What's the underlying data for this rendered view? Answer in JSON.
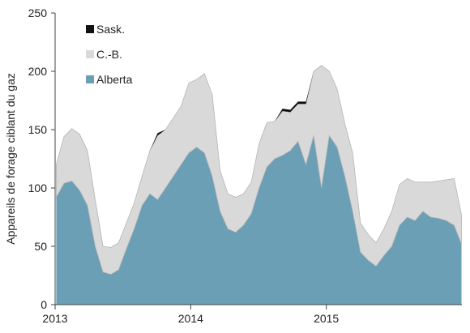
{
  "chart_data": {
    "type": "area",
    "title": "",
    "xlabel": "",
    "ylabel": "Appareils de forage ciblant du gaz",
    "ylim": [
      0,
      250
    ],
    "yticks": [
      0,
      50,
      100,
      150,
      200,
      250
    ],
    "xlim": [
      "2013-01-01",
      "2016-01-01"
    ],
    "xticks": [
      {
        "date": "2013-01-01",
        "label": "2013"
      },
      {
        "date": "2014-01-01",
        "label": "2014"
      },
      {
        "date": "2015-01-01",
        "label": "2015"
      }
    ],
    "stacked": true,
    "grid": false,
    "legend_position": "top-left",
    "x": [
      "2013-01-04",
      "2013-01-25",
      "2013-02-15",
      "2013-03-08",
      "2013-03-29",
      "2013-04-19",
      "2013-05-10",
      "2013-05-31",
      "2013-06-21",
      "2013-07-12",
      "2013-08-02",
      "2013-08-23",
      "2013-09-13",
      "2013-10-04",
      "2013-10-25",
      "2013-11-15",
      "2013-12-06",
      "2013-12-27",
      "2014-01-17",
      "2014-02-07",
      "2014-02-28",
      "2014-03-21",
      "2014-04-11",
      "2014-05-02",
      "2014-05-23",
      "2014-06-13",
      "2014-07-04",
      "2014-07-25",
      "2014-08-15",
      "2014-09-05",
      "2014-09-26",
      "2014-10-17",
      "2014-11-07",
      "2014-11-28",
      "2014-12-19",
      "2015-01-09",
      "2015-01-30",
      "2015-02-20",
      "2015-03-13",
      "2015-04-03",
      "2015-04-24",
      "2015-05-15",
      "2015-06-05",
      "2015-06-26",
      "2015-07-17",
      "2015-08-07",
      "2015-08-28",
      "2015-09-18",
      "2015-10-09",
      "2015-10-30",
      "2015-11-20",
      "2015-12-11",
      "2015-12-31"
    ],
    "series": [
      {
        "name": "Alberta",
        "color": "#6a9fb5",
        "values": [
          92,
          104,
          106,
          98,
          85,
          50,
          28,
          26,
          30,
          48,
          65,
          85,
          95,
          90,
          100,
          110,
          120,
          130,
          135,
          130,
          110,
          80,
          65,
          62,
          68,
          78,
          100,
          118,
          125,
          128,
          132,
          140,
          120,
          145,
          100,
          145,
          135,
          110,
          80,
          45,
          38,
          33,
          42,
          50,
          68,
          75,
          72,
          80,
          75,
          74,
          72,
          68,
          52
        ]
      },
      {
        "name": "C.-B.",
        "color": "#d9d9d9",
        "values": [
          28,
          40,
          45,
          48,
          47,
          40,
          22,
          23,
          23,
          22,
          22,
          25,
          37,
          55,
          50,
          50,
          50,
          60,
          58,
          68,
          70,
          35,
          30,
          30,
          27,
          27,
          38,
          38,
          32,
          38,
          33,
          32,
          52,
          55,
          105,
          55,
          50,
          45,
          50,
          25,
          22,
          20,
          23,
          30,
          35,
          33,
          33,
          25,
          30,
          32,
          35,
          40,
          25
        ]
      },
      {
        "name": "Sask.",
        "color": "#111111",
        "values": [
          0,
          0,
          0,
          0,
          0,
          0,
          0,
          0,
          0,
          0,
          0,
          0,
          0,
          2,
          0,
          0,
          0,
          0,
          0,
          0,
          0,
          0,
          0,
          0,
          0,
          0,
          0,
          0,
          0,
          2,
          2,
          2,
          2,
          0,
          0,
          0,
          0,
          0,
          0,
          0,
          0,
          0,
          0,
          0,
          0,
          0,
          0,
          0,
          0,
          0,
          0,
          0,
          0
        ]
      }
    ],
    "legend": [
      {
        "name": "Sask.",
        "color": "#111111"
      },
      {
        "name": "C.-B.",
        "color": "#d9d9d9"
      },
      {
        "name": "Alberta",
        "color": "#6a9fb5"
      }
    ]
  }
}
